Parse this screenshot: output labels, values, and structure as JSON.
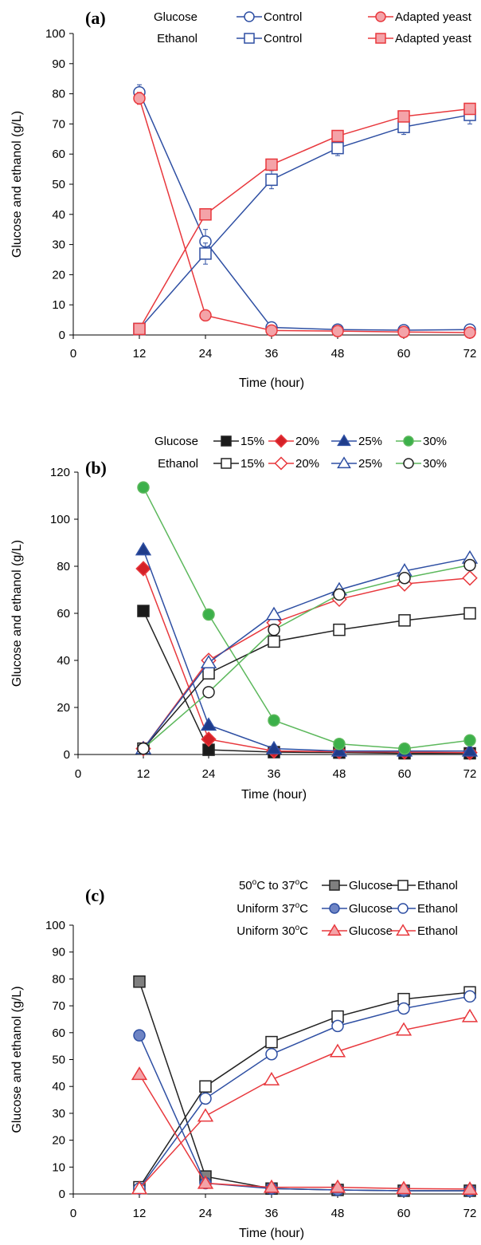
{
  "chart_data": [
    {
      "type": "line",
      "panel_label": "(a)",
      "xlabel": "Time (hour)",
      "ylabel": "Glucose and ethanol (g/L)",
      "xlim": [
        0,
        72
      ],
      "ylim": [
        0,
        100
      ],
      "xticks": [
        0,
        12,
        24,
        36,
        48,
        60,
        72
      ],
      "yticks": [
        0,
        10,
        20,
        30,
        40,
        50,
        60,
        70,
        80,
        90,
        100
      ],
      "legend_row_labels": [
        "Glucose",
        "Ethanol"
      ],
      "series": [
        {
          "name": "Control",
          "group": "Glucose",
          "color": "#2e4fa3",
          "marker": "circle-open",
          "x": [
            12,
            24,
            36,
            48,
            60,
            72
          ],
          "values": [
            80.5,
            31,
            2.5,
            1.8,
            1.6,
            1.8
          ],
          "err": [
            2.5,
            4,
            0.5,
            0.3,
            0.3,
            0.3
          ]
        },
        {
          "name": "Adapted yeast",
          "group": "Glucose",
          "color": "#e8383d",
          "marker": "circle-filled",
          "fill": "#f4a3a8",
          "x": [
            12,
            24,
            36,
            48,
            60,
            72
          ],
          "values": [
            78.5,
            6.5,
            1.5,
            1.3,
            1.0,
            0.8
          ],
          "err": [
            2,
            0.8,
            0.3,
            0.2,
            0.2,
            0.2
          ]
        },
        {
          "name": "Control",
          "group": "Ethanol",
          "color": "#2e4fa3",
          "marker": "square-open",
          "x": [
            12,
            24,
            36,
            48,
            60,
            72
          ],
          "values": [
            2,
            27,
            51.5,
            62,
            69,
            73
          ],
          "err": [
            0.5,
            3.5,
            3,
            2.5,
            2.5,
            3
          ]
        },
        {
          "name": "Adapted yeast",
          "group": "Ethanol",
          "color": "#e8383d",
          "marker": "square-filled",
          "fill": "#f4a3a8",
          "x": [
            12,
            24,
            36,
            48,
            60,
            72
          ],
          "values": [
            2,
            40,
            56.5,
            66,
            72.5,
            75
          ],
          "err": [
            0.5,
            1,
            1.5,
            1.5,
            1.5,
            1.5
          ]
        }
      ]
    },
    {
      "type": "line",
      "panel_label": "(b)",
      "xlabel": "Time (hour)",
      "ylabel": "Glucose and ethanol (g/L)",
      "xlim": [
        0,
        72
      ],
      "ylim": [
        0,
        120
      ],
      "xticks": [
        0,
        12,
        24,
        36,
        48,
        60,
        72
      ],
      "yticks": [
        0,
        20,
        40,
        60,
        80,
        100,
        120
      ],
      "legend_row_labels": [
        "Glucose",
        "Ethanol"
      ],
      "series": [
        {
          "name": "15%",
          "group": "Glucose",
          "color": "#222222",
          "marker": "square-filled",
          "fill": "#1a1a1a",
          "x": [
            12,
            24,
            36,
            48,
            60,
            72
          ],
          "values": [
            61,
            2,
            1,
            0.8,
            0.5,
            0.5
          ]
        },
        {
          "name": "20%",
          "group": "Glucose",
          "color": "#e8383d",
          "marker": "diamond-filled",
          "fill": "#d42027",
          "x": [
            12,
            24,
            36,
            48,
            60,
            72
          ],
          "values": [
            79,
            6.5,
            1.5,
            1.2,
            1,
            0.8
          ]
        },
        {
          "name": "25%",
          "group": "Glucose",
          "color": "#2e4fa3",
          "marker": "triangle-filled",
          "fill": "#1f3c8a",
          "x": [
            12,
            24,
            36,
            48,
            60,
            72
          ],
          "values": [
            87,
            12.5,
            2.5,
            1.5,
            1.5,
            1.5
          ]
        },
        {
          "name": "30%",
          "group": "Glucose",
          "color": "#5cb85c",
          "marker": "circle-filled",
          "fill": "#3cb04a",
          "x": [
            12,
            24,
            36,
            48,
            60,
            72
          ],
          "values": [
            113.5,
            59.5,
            14.5,
            4.5,
            2.5,
            6
          ]
        },
        {
          "name": "15%",
          "group": "Ethanol",
          "color": "#222222",
          "marker": "square-open",
          "x": [
            12,
            24,
            36,
            48,
            60,
            72
          ],
          "values": [
            2.5,
            34.5,
            48,
            53,
            57,
            60
          ]
        },
        {
          "name": "20%",
          "group": "Ethanol",
          "color": "#e8383d",
          "marker": "diamond-open",
          "x": [
            12,
            24,
            36,
            48,
            60,
            72
          ],
          "values": [
            2.5,
            40,
            56,
            66,
            72.5,
            75
          ]
        },
        {
          "name": "25%",
          "group": "Ethanol",
          "color": "#2e4fa3",
          "marker": "triangle-open",
          "x": [
            12,
            24,
            36,
            48,
            60,
            72
          ],
          "values": [
            2.5,
            39,
            59.5,
            70,
            78,
            83.5
          ]
        },
        {
          "name": "30%",
          "group": "Ethanol",
          "color": "#5cb85c",
          "marker": "circle-open",
          "markerStroke": "#222222",
          "x": [
            12,
            24,
            36,
            48,
            60,
            72
          ],
          "values": [
            2.5,
            26.5,
            53,
            68,
            75,
            80.5
          ]
        }
      ]
    },
    {
      "type": "line",
      "panel_label": "(c)",
      "xlabel": "Time (hour)",
      "ylabel": "Glucose and ethanol (g/L)",
      "xlim": [
        0,
        72
      ],
      "ylim": [
        0,
        100
      ],
      "xticks": [
        0,
        12,
        24,
        36,
        48,
        60,
        72
      ],
      "yticks": [
        0,
        10,
        20,
        30,
        40,
        50,
        60,
        70,
        80,
        90,
        100
      ],
      "legend_row_labels": [
        "50oC to 37oC",
        "Uniform 37oC",
        "Uniform 30oC"
      ],
      "series": [
        {
          "name": "Glucose",
          "group": "50oC to 37oC",
          "color": "#222222",
          "marker": "square-filled",
          "fill": "#7f7f7f",
          "x": [
            12,
            24,
            36,
            48,
            60,
            72
          ],
          "values": [
            79,
            6.5,
            2,
            1.5,
            1.2,
            1.2
          ],
          "err": [
            1,
            1,
            0.3,
            0.3,
            0.3,
            0.3
          ]
        },
        {
          "name": "Ethanol",
          "group": "50oC to 37oC",
          "color": "#222222",
          "marker": "square-open",
          "x": [
            12,
            24,
            36,
            48,
            60,
            72
          ],
          "values": [
            2.5,
            40,
            56.5,
            66,
            72.5,
            75
          ],
          "err": [
            0.5,
            1,
            1.5,
            1.5,
            1.5,
            1
          ]
        },
        {
          "name": "Glucose",
          "group": "Uniform 37oC",
          "color": "#2e4fa3",
          "marker": "circle-filled",
          "fill": "#6e84c4",
          "x": [
            12,
            24,
            36,
            48,
            60,
            72
          ],
          "values": [
            59,
            4,
            2,
            1.5,
            1.2,
            1.2
          ],
          "err": [
            1,
            0.5,
            0.3,
            0.3,
            0.3,
            0.3
          ]
        },
        {
          "name": "Ethanol",
          "group": "Uniform 37oC",
          "color": "#2e4fa3",
          "marker": "circle-open",
          "x": [
            12,
            24,
            36,
            48,
            60,
            72
          ],
          "values": [
            2,
            35.5,
            52,
            62.5,
            69,
            73.5
          ],
          "err": [
            0.5,
            1.5,
            1.5,
            1.5,
            1.5,
            1.5
          ]
        },
        {
          "name": "Glucose",
          "group": "Uniform 30oC",
          "color": "#e8383d",
          "marker": "triangle-filled",
          "fill": "#f4a3a8",
          "x": [
            12,
            24,
            36,
            48,
            60,
            72
          ],
          "values": [
            44.5,
            4,
            2.5,
            2.5,
            2,
            1.8
          ],
          "err": [
            1,
            0.5,
            0.3,
            0.3,
            0.3,
            0.3
          ]
        },
        {
          "name": "Ethanol",
          "group": "Uniform 30oC",
          "color": "#e8383d",
          "marker": "triangle-open",
          "x": [
            12,
            24,
            36,
            48,
            60,
            72
          ],
          "values": [
            2,
            29,
            42.5,
            53,
            61,
            66
          ],
          "err": [
            0.5,
            1,
            1,
            1,
            1.5,
            1.5
          ]
        }
      ]
    }
  ]
}
